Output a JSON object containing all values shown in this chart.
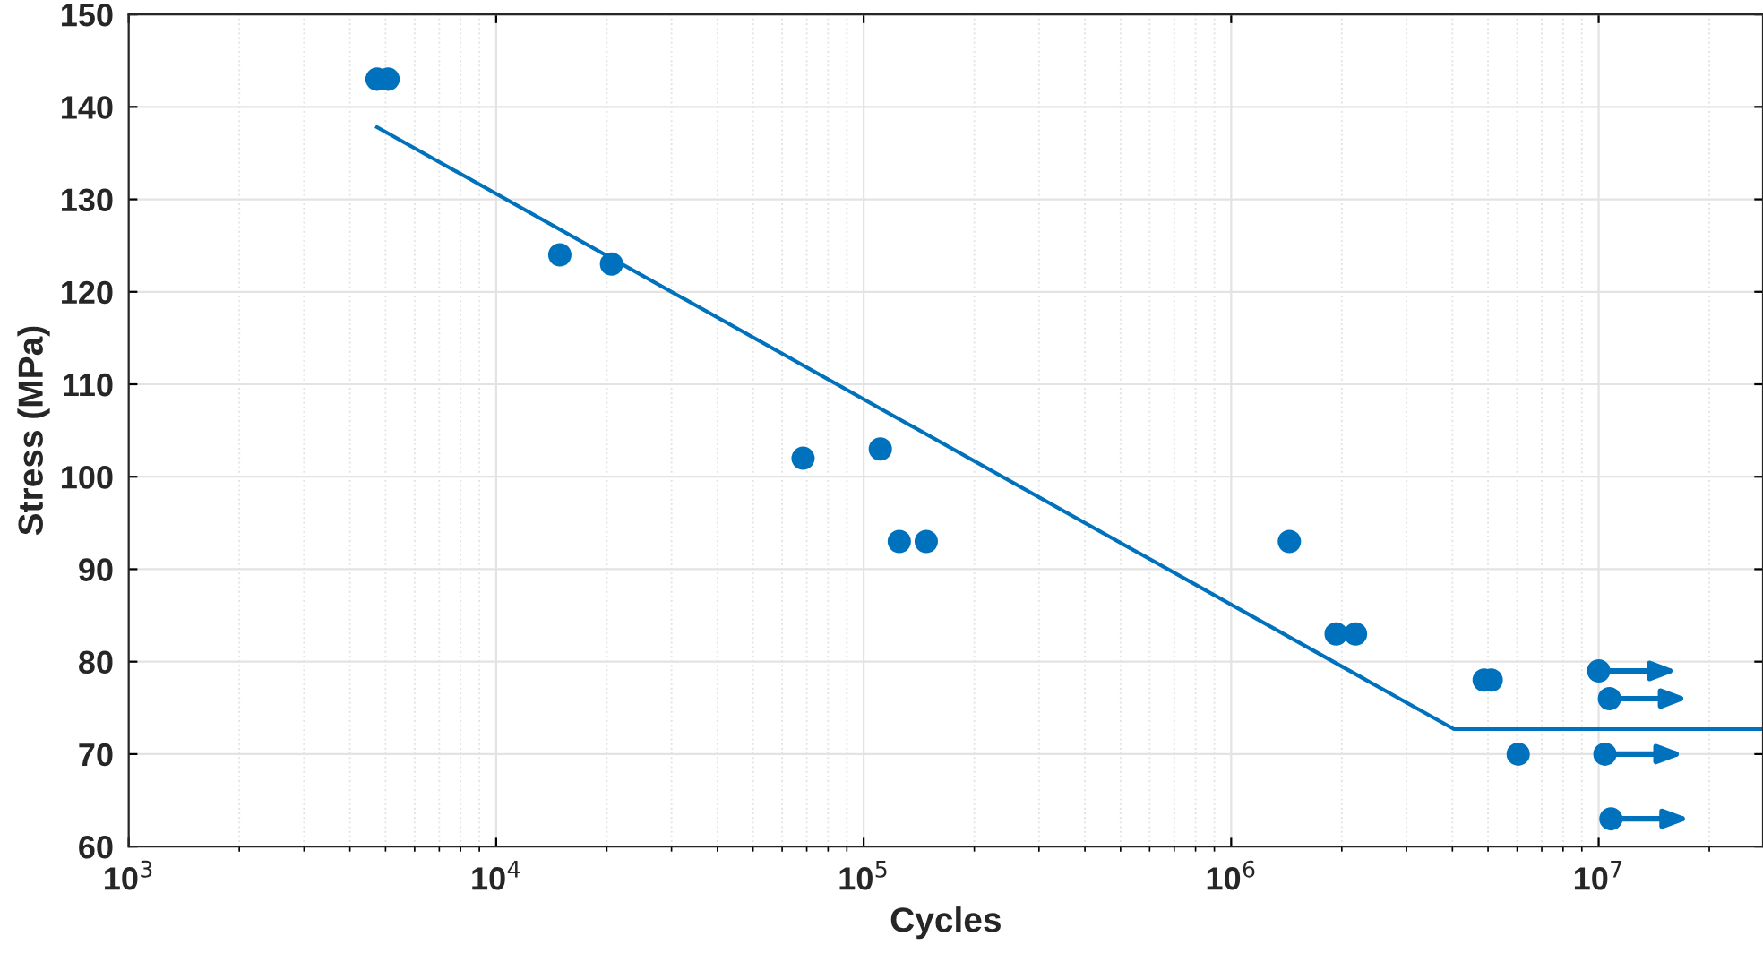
{
  "chart_data": {
    "type": "scatter",
    "xlabel": "Cycles",
    "ylabel": "Stress (MPa)",
    "log": "x",
    "grid": true,
    "marker": "circle",
    "xlim": [
      1000,
      28000000
    ],
    "ylim": [
      60,
      150
    ],
    "xticks": [
      {
        "value": 1000,
        "label": "10$^{3}$"
      },
      {
        "value": 10000,
        "label": "10$^{4}$"
      },
      {
        "value": 100000,
        "label": "10$^{5}$"
      },
      {
        "value": 1000000,
        "label": "10$^{6}$"
      },
      {
        "value": 10000000,
        "label": "10$^{7}$"
      }
    ],
    "yticks": [
      60,
      70,
      80,
      90,
      100,
      110,
      120,
      130,
      140,
      150
    ],
    "series": [
      {
        "color": "#0072bd",
        "x": [
          4740,
          5080,
          14900,
          20600,
          68400,
          111000,
          125000,
          148000,
          1440000,
          1930000,
          2180000,
          4880000,
          5100000,
          6040000
        ],
        "values": [
          143,
          143,
          124,
          123,
          102,
          103,
          93,
          93,
          93,
          83,
          83,
          78,
          78,
          70
        ]
      },
      {
        "color": "#0072bd",
        "x": [
          10000000,
          10700000,
          10400000,
          10800000
        ],
        "values": [
          79,
          76,
          70,
          63
        ]
      },
      {
        "type": "line",
        "marker": "none",
        "color": "#0072bd",
        "x": [
          4740,
          4040000,
          28000000
        ],
        "values": [
          137.8,
          72.7,
          72.7
        ]
      }
    ]
  }
}
